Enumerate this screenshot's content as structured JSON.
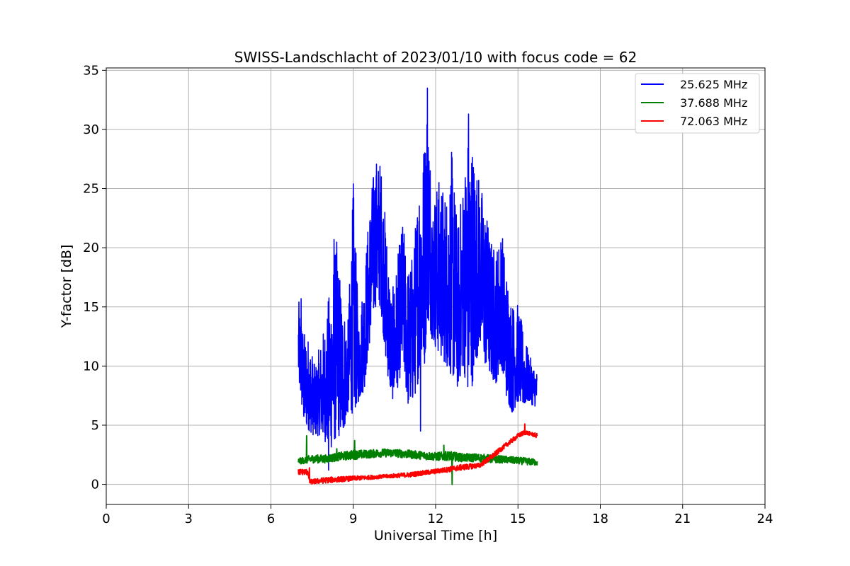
{
  "chart_data": {
    "type": "line",
    "title": "SWISS-Landschlacht of 2023/01/10 with focus code = 62",
    "xlabel": "Universal Time [h]",
    "ylabel": "Y-factor [dB]",
    "xlim": [
      0,
      24
    ],
    "ylim": [
      -1.7,
      35.2
    ],
    "xticks": [
      0,
      3,
      6,
      9,
      12,
      15,
      18,
      21,
      24
    ],
    "yticks": [
      0,
      5,
      10,
      15,
      20,
      25,
      30,
      35
    ],
    "grid": true,
    "legend_position": "top-right",
    "series": [
      {
        "name": "25.625 MHz",
        "color": "#0000ff",
        "envelope": [
          [
            7.0,
            8.5,
            15.7
          ],
          [
            7.2,
            5.0,
            13.0
          ],
          [
            7.4,
            4.5,
            12.5
          ],
          [
            7.6,
            4.0,
            10.0
          ],
          [
            7.8,
            4.2,
            12.0
          ],
          [
            8.0,
            3.5,
            14.0
          ],
          [
            8.2,
            3.0,
            17.9
          ],
          [
            8.4,
            4.0,
            20.7
          ],
          [
            8.6,
            4.0,
            16.0
          ],
          [
            8.8,
            6.0,
            13.5
          ],
          [
            9.0,
            6.0,
            25.4
          ],
          [
            9.2,
            7.0,
            14.0
          ],
          [
            9.4,
            8.0,
            18.0
          ],
          [
            9.6,
            12.0,
            24.0
          ],
          [
            9.8,
            15.0,
            27.8
          ],
          [
            10.0,
            15.0,
            27.5
          ],
          [
            10.2,
            10.0,
            22.0
          ],
          [
            10.4,
            7.0,
            16.0
          ],
          [
            10.6,
            8.0,
            19.0
          ],
          [
            10.8,
            10.0,
            22.5
          ],
          [
            11.0,
            6.5,
            18.5
          ],
          [
            11.2,
            7.0,
            20.0
          ],
          [
            11.4,
            9.0,
            27.0
          ],
          [
            11.6,
            10.0,
            30.0
          ],
          [
            11.7,
            14.0,
            33.5
          ],
          [
            11.9,
            12.0,
            24.5
          ],
          [
            12.1,
            11.0,
            26.0
          ],
          [
            12.4,
            10.0,
            25.0
          ],
          [
            12.6,
            9.0,
            28.5
          ],
          [
            12.8,
            8.0,
            22.0
          ],
          [
            13.0,
            10.0,
            26.0
          ],
          [
            13.2,
            7.0,
            31.3
          ],
          [
            13.4,
            9.0,
            28.7
          ],
          [
            13.6,
            12.0,
            26.0
          ],
          [
            13.8,
            10.0,
            24.0
          ],
          [
            14.0,
            9.0,
            21.0
          ],
          [
            14.2,
            8.5,
            20.0
          ],
          [
            14.4,
            10.0,
            22.0
          ],
          [
            14.6,
            7.0,
            18.0
          ],
          [
            14.8,
            6.0,
            15.5
          ],
          [
            15.0,
            7.0,
            15.3
          ],
          [
            15.2,
            6.5,
            13.0
          ],
          [
            15.4,
            7.0,
            11.0
          ],
          [
            15.6,
            6.5,
            10.0
          ],
          [
            15.7,
            7.0,
            9.5
          ]
        ],
        "spikes": [
          [
            7.1,
            15.7
          ],
          [
            8.3,
            20.7
          ],
          [
            9.0,
            25.4
          ],
          [
            11.45,
            4.5
          ],
          [
            11.7,
            33.5
          ],
          [
            13.2,
            31.3
          ],
          [
            8.1,
            1.2
          ]
        ]
      },
      {
        "name": "37.688 MHz",
        "color": "#008000",
        "envelope": [
          [
            7.0,
            1.7,
            2.2
          ],
          [
            7.5,
            1.8,
            2.5
          ],
          [
            8.0,
            1.8,
            2.5
          ],
          [
            8.5,
            2.0,
            2.7
          ],
          [
            9.0,
            2.1,
            2.9
          ],
          [
            9.5,
            2.2,
            2.9
          ],
          [
            10.0,
            2.3,
            3.0
          ],
          [
            10.5,
            2.3,
            3.0
          ],
          [
            11.0,
            2.2,
            2.9
          ],
          [
            11.5,
            2.1,
            2.8
          ],
          [
            12.0,
            2.0,
            2.7
          ],
          [
            12.5,
            2.0,
            2.8
          ],
          [
            13.0,
            1.9,
            2.6
          ],
          [
            13.5,
            1.9,
            2.6
          ],
          [
            14.0,
            1.8,
            2.5
          ],
          [
            14.5,
            1.8,
            2.4
          ],
          [
            15.0,
            1.7,
            2.3
          ],
          [
            15.5,
            1.6,
            2.2
          ],
          [
            15.7,
            1.6,
            2.1
          ]
        ],
        "spikes": [
          [
            7.3,
            4.1
          ],
          [
            9.05,
            3.7
          ],
          [
            12.6,
            0.0
          ],
          [
            8.4,
            3.0
          ],
          [
            12.3,
            3.3
          ]
        ]
      },
      {
        "name": "72.063 MHz",
        "color": "#ff0000",
        "envelope": [
          [
            7.0,
            0.8,
            1.3
          ],
          [
            7.35,
            0.8,
            1.3
          ],
          [
            7.4,
            0.0,
            0.4
          ],
          [
            8.0,
            0.1,
            0.6
          ],
          [
            9.0,
            0.3,
            0.7
          ],
          [
            10.0,
            0.5,
            0.8
          ],
          [
            11.0,
            0.6,
            1.0
          ],
          [
            12.0,
            0.9,
            1.3
          ],
          [
            13.0,
            1.2,
            1.7
          ],
          [
            13.6,
            1.4,
            1.8
          ],
          [
            14.0,
            2.0,
            2.5
          ],
          [
            14.5,
            3.0,
            3.4
          ],
          [
            15.0,
            3.9,
            4.3
          ],
          [
            15.25,
            4.2,
            4.6
          ],
          [
            15.5,
            4.1,
            4.4
          ],
          [
            15.7,
            3.9,
            4.3
          ]
        ],
        "spikes": [
          [
            15.25,
            5.1
          ],
          [
            7.4,
            1.4
          ]
        ]
      }
    ]
  }
}
